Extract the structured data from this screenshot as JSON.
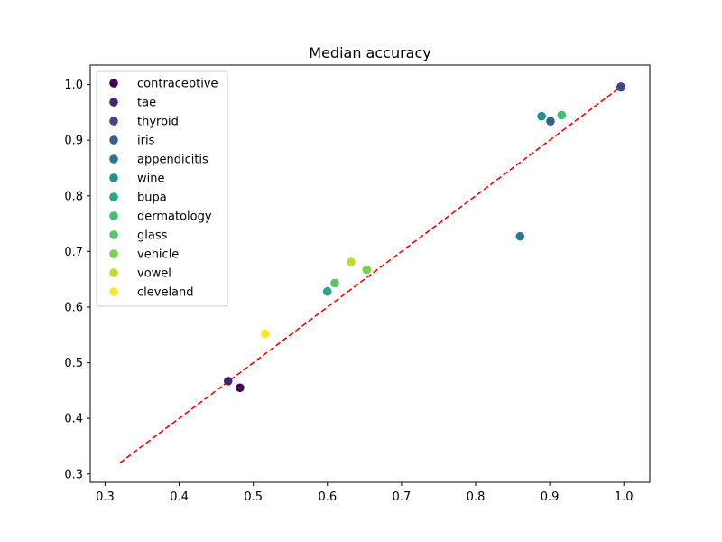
{
  "chart_data": {
    "type": "scatter",
    "title": "Median accuracy",
    "xlabel": "",
    "ylabel": "",
    "xlim": [
      0.28,
      1.035
    ],
    "ylim": [
      0.285,
      1.035
    ],
    "xticks": [
      0.3,
      0.4,
      0.5,
      0.6,
      0.7,
      0.8,
      0.9,
      1.0
    ],
    "xtick_labels": [
      "0.3",
      "0.4",
      "0.5",
      "0.6",
      "0.7",
      "0.8",
      "0.9",
      "1.0"
    ],
    "yticks": [
      0.3,
      0.4,
      0.5,
      0.6,
      0.7,
      0.8,
      0.9,
      1.0
    ],
    "ytick_labels": [
      "0.3",
      "0.4",
      "0.5",
      "0.6",
      "0.7",
      "0.8",
      "0.9",
      "1.0"
    ],
    "grid": false,
    "legend_position": "upper-left",
    "reference_line": {
      "x": [
        0.32,
        1.0
      ],
      "y": [
        0.32,
        1.0
      ],
      "color": "#ff0000",
      "style": "dashed"
    },
    "series": [
      {
        "name": "contraceptive",
        "color": "#440154",
        "points": [
          [
            0.482,
            0.455
          ],
          [
            0.996,
            0.996
          ]
        ]
      },
      {
        "name": "tae",
        "color": "#482475",
        "points": [
          [
            0.466,
            0.467
          ]
        ]
      },
      {
        "name": "thyroid",
        "color": "#414487",
        "points": [
          [
            0.996,
            0.995
          ]
        ]
      },
      {
        "name": "iris",
        "color": "#355f8d",
        "points": [
          [
            0.901,
            0.934
          ]
        ]
      },
      {
        "name": "appendicitis",
        "color": "#2a788e",
        "points": [
          [
            0.86,
            0.727
          ]
        ]
      },
      {
        "name": "wine",
        "color": "#21918c",
        "points": [
          [
            0.889,
            0.943
          ]
        ]
      },
      {
        "name": "bupa",
        "color": "#22a884",
        "points": [
          [
            0.6,
            0.628
          ]
        ]
      },
      {
        "name": "dermatology",
        "color": "#44bf70",
        "points": [
          [
            0.916,
            0.945
          ]
        ]
      },
      {
        "name": "glass",
        "color": "#56c667",
        "points": [
          [
            0.61,
            0.643
          ]
        ]
      },
      {
        "name": "vehicle",
        "color": "#7ad151",
        "points": [
          [
            0.653,
            0.667
          ]
        ]
      },
      {
        "name": "vowel",
        "color": "#bddf26",
        "points": [
          [
            0.632,
            0.681
          ]
        ]
      },
      {
        "name": "cleveland",
        "color": "#fde725",
        "points": [
          [
            0.516,
            0.552
          ]
        ]
      }
    ]
  }
}
